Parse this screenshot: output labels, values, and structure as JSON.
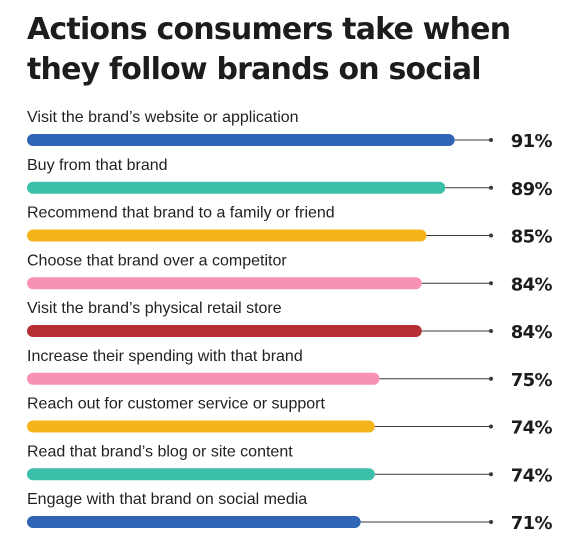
{
  "chart_data": {
    "type": "bar",
    "orientation": "horizontal",
    "title": "Actions consumers take when they follow brands on social",
    "categories": [
      "Visit the brand’s website or application",
      "Buy from that brand",
      "Recommend that brand to a family or friend",
      "Choose that brand over a competitor",
      "Visit the brand’s physical retail store",
      "Increase their spending with that brand",
      "Reach out for customer service or support",
      "Read that brand’s blog or site content",
      "Engage with that brand on social media"
    ],
    "values": [
      91,
      89,
      85,
      84,
      84,
      75,
      74,
      74,
      71
    ],
    "value_labels": [
      "91%",
      "89%",
      "85%",
      "84%",
      "84%",
      "75%",
      "74%",
      "74%",
      "71%"
    ],
    "colors": [
      "#3065b5",
      "#3bbfab",
      "#f6b41c",
      "#f891b6",
      "#b52f34",
      "#f891b6",
      "#f6b41c",
      "#3bbfab",
      "#3065b5"
    ],
    "xlim": [
      0,
      100
    ],
    "grid": false,
    "legend": "none"
  }
}
